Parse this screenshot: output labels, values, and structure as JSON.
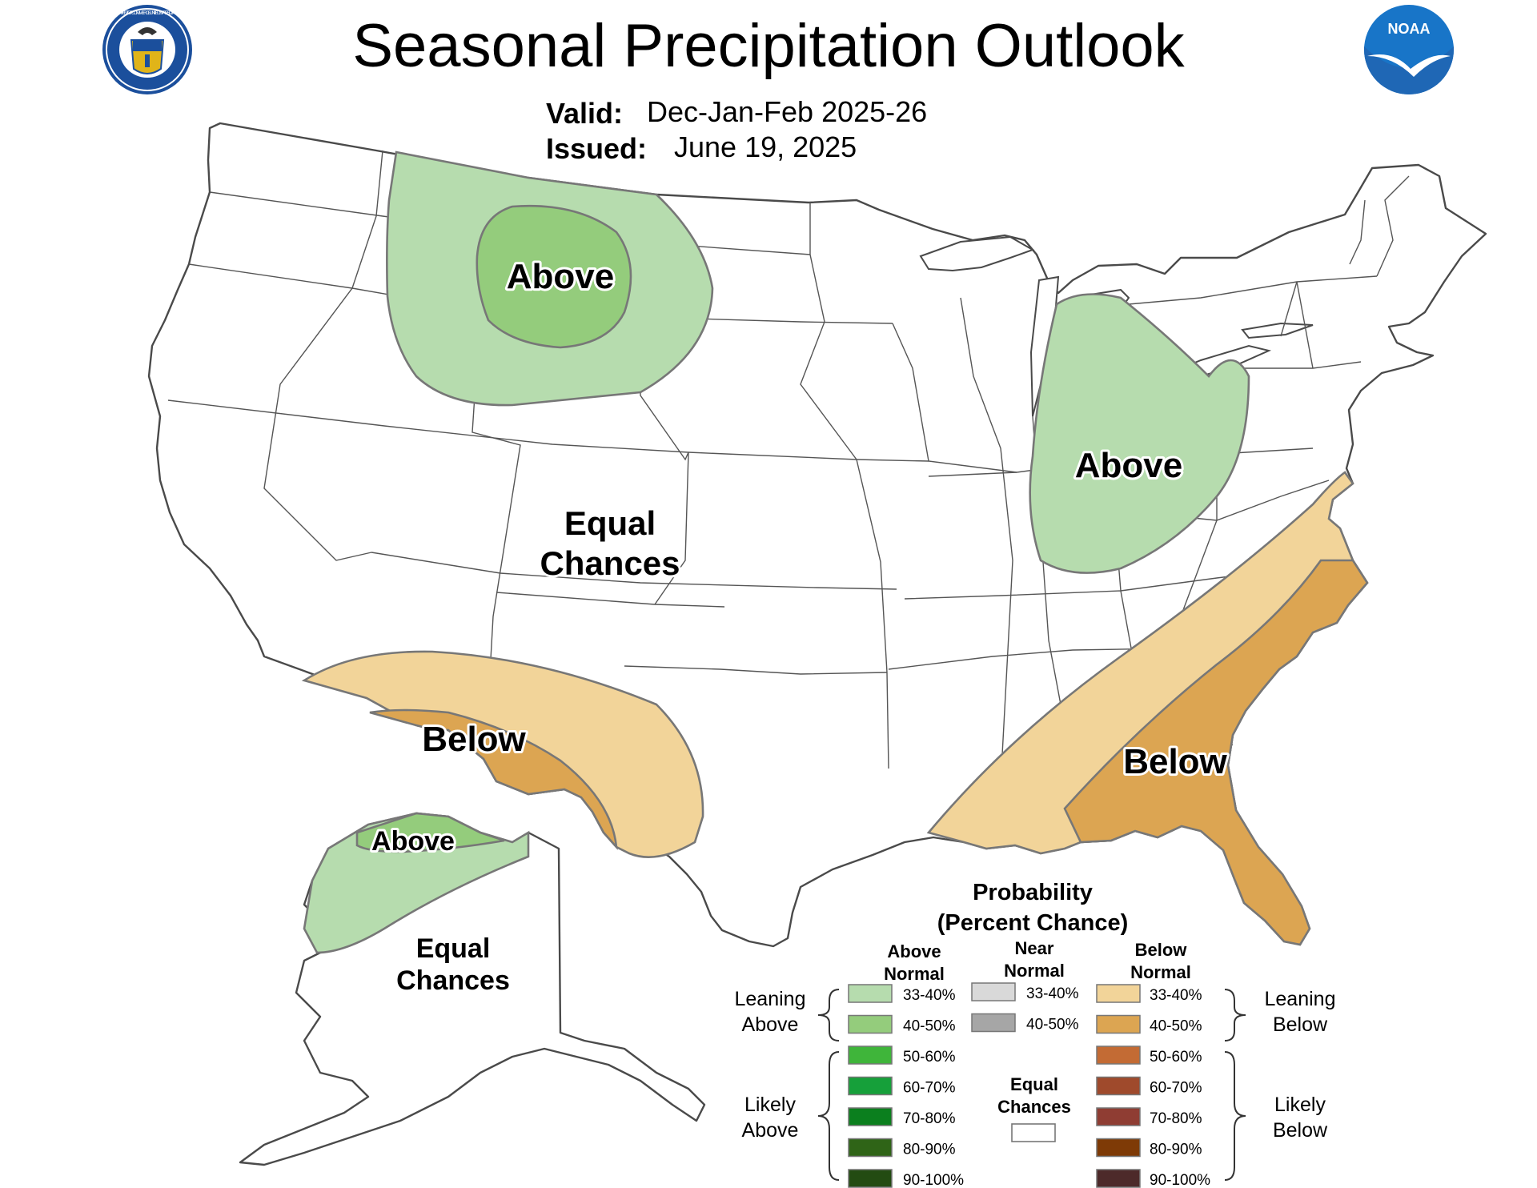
{
  "title": "Seasonal Precipitation Outlook",
  "valid_label": "Valid:",
  "valid_value": "Dec-Jan-Feb 2025-26",
  "issued_label": "Issued:",
  "issued_value": "June 19, 2025",
  "logos": {
    "commerce": "department-of-commerce-seal",
    "commerce_text": "DEPARTMENT OF COMMERCE · UNITED STATES OF AMERICA",
    "noaa": "noaa-logo",
    "noaa_text": "NOAA"
  },
  "colors": {
    "above_33_40": "#b6dcae",
    "above_40_50": "#94cc7c",
    "above_50_60": "#3fb53a",
    "above_60_70": "#16a03a",
    "above_70_80": "#0b7f1e",
    "above_80_90": "#2f6417",
    "above_90_100": "#234b12",
    "near_33_40": "#d9d9d9",
    "near_40_50": "#a6a6a6",
    "below_33_40": "#f2d499",
    "below_40_50": "#dca552",
    "below_50_60": "#c36b34",
    "below_60_70": "#9f4a2c",
    "below_70_80": "#8f3d33",
    "below_80_90": "#7e3a06",
    "below_90_100": "#4d2a2a",
    "outline": "#4a4a4a",
    "noaa_blue": "#1875c8"
  },
  "map": {
    "labels": [
      {
        "text": "Above",
        "category": "above"
      },
      {
        "text": "Above",
        "category": "above"
      },
      {
        "text": "Equal",
        "category": "equal"
      },
      {
        "text": "Chances",
        "category": "equal"
      },
      {
        "text": "Below",
        "category": "below"
      },
      {
        "text": "Below",
        "category": "below"
      },
      {
        "text": "Above",
        "category": "above"
      },
      {
        "text": "Equal",
        "category": "equal"
      },
      {
        "text": "Chances",
        "category": "equal"
      }
    ]
  },
  "legend": {
    "title_1": "Probability",
    "title_2": "(Percent Chance)",
    "above_header_1": "Above",
    "above_header_2": "Normal",
    "near_header_1": "Near",
    "near_header_2": "Normal",
    "below_header_1": "Below",
    "below_header_2": "Normal",
    "above_items": [
      {
        "label": "33-40%",
        "color": "#b6dcae"
      },
      {
        "label": "40-50%",
        "color": "#94cc7c"
      },
      {
        "label": "50-60%",
        "color": "#3fb53a"
      },
      {
        "label": "60-70%",
        "color": "#16a03a"
      },
      {
        "label": "70-80%",
        "color": "#0b7f1e"
      },
      {
        "label": "80-90%",
        "color": "#2f6417"
      },
      {
        "label": "90-100%",
        "color": "#234b12"
      }
    ],
    "near_items": [
      {
        "label": "33-40%",
        "color": "#d9d9d9"
      },
      {
        "label": "40-50%",
        "color": "#a6a6a6"
      }
    ],
    "below_items": [
      {
        "label": "33-40%",
        "color": "#f2d499"
      },
      {
        "label": "40-50%",
        "color": "#dca552"
      },
      {
        "label": "50-60%",
        "color": "#c36b34"
      },
      {
        "label": "60-70%",
        "color": "#9f4a2c"
      },
      {
        "label": "70-80%",
        "color": "#8f3d33"
      },
      {
        "label": "80-90%",
        "color": "#7e3a06"
      },
      {
        "label": "90-100%",
        "color": "#4d2a2a"
      }
    ],
    "leaning_above_1": "Leaning",
    "leaning_above_2": "Above",
    "likely_above_1": "Likely",
    "likely_above_2": "Above",
    "leaning_below_1": "Leaning",
    "leaning_below_2": "Below",
    "likely_below_1": "Likely",
    "likely_below_2": "Below",
    "equal_1": "Equal",
    "equal_2": "Chances"
  }
}
